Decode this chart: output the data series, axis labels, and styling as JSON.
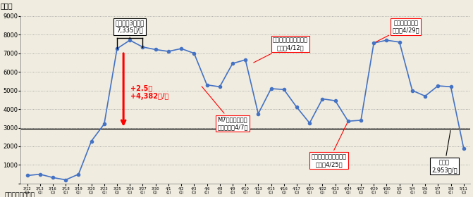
{
  "x_labels": [
    "3/12\n(土)",
    "3/13\n(日)",
    "3/16\n(水)",
    "3/18\n(金)",
    "3/19\n(土)",
    "3/20\n(日)",
    "3/23\n(水)",
    "3/25\n(金)",
    "3/26\n(土)",
    "3/27\n(日)",
    "3/30\n(水)",
    "4/1\n(金)",
    "4/2\n(土)",
    "4/3\n(日)",
    "4/6\n(水)",
    "4/8\n(金)",
    "4/9\n(土)",
    "4/10\n(日)",
    "4/13\n(水)",
    "4/15\n(金)",
    "4/16\n(土)",
    "4/17\n(日)",
    "4/20\n(水)",
    "4/22\n(金)",
    "4/23\n(土)",
    "4/24\n(日)",
    "4/27\n(水)",
    "4/29\n(金)",
    "4/30\n(土)",
    "5/1\n(日)",
    "5/4\n(水)",
    "5/6\n(金)",
    "5/7\n(土)",
    "5/8\n(日)",
    "5/11\n(水)"
  ],
  "y_values": [
    430,
    500,
    320,
    200,
    500,
    2280,
    3200,
    7250,
    7700,
    7335,
    7200,
    7100,
    7250,
    7000,
    5300,
    5200,
    6450,
    6650,
    3750,
    5100,
    5050,
    4100,
    3250,
    4550,
    4450,
    3350,
    3400,
    7550,
    7700,
    7600,
    5000,
    4700,
    5250,
    5200,
    1900
  ],
  "background_color": "#f0ece0",
  "line_color": "#4472c4",
  "marker_color": "#4472c4",
  "reference_line_value": 2953,
  "ylim": [
    0,
    9000
  ],
  "yticks": [
    0,
    1000,
    2000,
    3000,
    4000,
    5000,
    6000,
    7000,
    8000,
    9000
  ]
}
